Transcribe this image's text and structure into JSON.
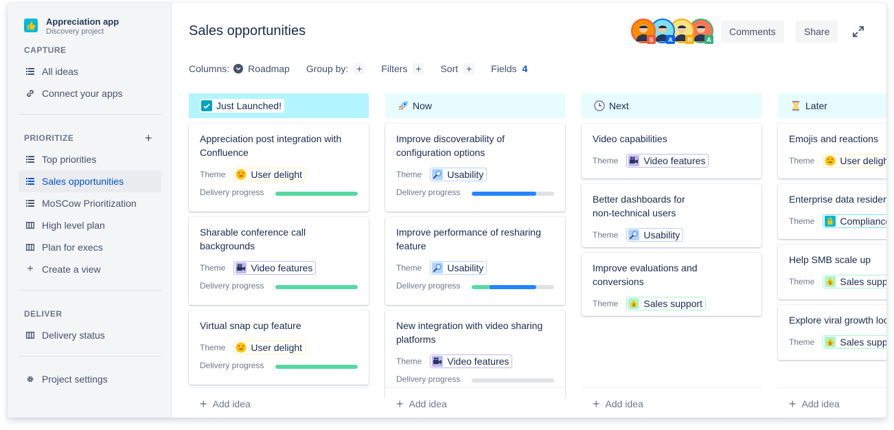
{
  "project": {
    "name": "Appreciation app",
    "type": "Discovery project"
  },
  "sidebar": {
    "capture_title": "CAPTURE",
    "capture_items": [
      {
        "label": "All ideas",
        "icon": "list-icon"
      },
      {
        "label": "Connect your apps",
        "icon": "link-icon"
      }
    ],
    "prioritize_title": "PRIORITIZE",
    "prioritize_items": [
      {
        "label": "Top priorities",
        "icon": "list-icon"
      },
      {
        "label": "Sales opportunities",
        "icon": "list-icon",
        "active": true
      },
      {
        "label": "MoSCow Prioritization",
        "icon": "list-icon"
      },
      {
        "label": "High level plan",
        "icon": "board-icon"
      },
      {
        "label": "Plan for execs",
        "icon": "board-icon"
      },
      {
        "label": "Create a view",
        "icon": "plus-icon"
      }
    ],
    "deliver_title": "DELIVER",
    "deliver_items": [
      {
        "label": "Delivery status",
        "icon": "board-icon"
      }
    ],
    "settings_label": "Project settings"
  },
  "header": {
    "title": "Sales opportunities",
    "avatars": [
      {
        "letter": "S",
        "bg": "#ff8b00",
        "badge": "#ff5630"
      },
      {
        "letter": "A",
        "bg": "#79e2f2",
        "badge": "#0065ff"
      },
      {
        "letter": "R",
        "bg": "#ffe380",
        "badge": "#ffab00"
      },
      {
        "letter": "A",
        "bg": "#ff7452",
        "badge": "#36b37e"
      }
    ],
    "comments_label": "Comments",
    "share_label": "Share"
  },
  "toolbar": {
    "columns_label": "Columns:",
    "columns_value": "Roadmap",
    "group_by_label": "Group by:",
    "filters_label": "Filters",
    "sort_label": "Sort",
    "fields_label": "Fields",
    "fields_count": "4"
  },
  "themes": {
    "user_delight": {
      "label": "User delight",
      "icon": "heart-eyes-icon",
      "border": "#fff0b3"
    },
    "usability": {
      "label": "Usability",
      "icon": "magnifier-icon",
      "border": "#b3d4ff"
    },
    "video": {
      "label": "Video features",
      "icon": "video-camera-icon",
      "border": "#c0b6f2"
    },
    "sales": {
      "label": "Sales support",
      "icon": "money-bag-icon",
      "border": "#abf5d1"
    },
    "compliance": {
      "label": "Compliance",
      "icon": "lock-icon",
      "border": "#79e2f2"
    }
  },
  "labels": {
    "theme": "Theme",
    "delivery": "Delivery progress",
    "add_idea": "Add idea"
  },
  "columns": [
    {
      "name": "Just Launched!",
      "icon": "check-icon",
      "header_bg": "#b3f5ff",
      "cards": [
        {
          "title_lines": [
            "Appreciation post integration with",
            "Confluence"
          ],
          "theme": "user_delight",
          "progress": {
            "green": 1.0,
            "blue": 0
          }
        },
        {
          "title_lines": [
            "Sharable conference call",
            "backgrounds"
          ],
          "theme": "video",
          "progress": {
            "green": 1.0,
            "blue": 0
          }
        },
        {
          "title_lines": [
            "Virtual snap cup feature"
          ],
          "theme": "user_delight",
          "progress": {
            "green": 1.0,
            "blue": 0
          }
        }
      ]
    },
    {
      "name": "Now",
      "icon": "rocket-icon",
      "header_bg": "#e6fcff",
      "cards": [
        {
          "title_lines": [
            "Improve discoverability of",
            "configuration options"
          ],
          "theme": "usability",
          "progress": {
            "green": 0,
            "blue": 0.78
          }
        },
        {
          "title_lines": [
            "Improve performance of resharing",
            "feature"
          ],
          "theme": "usability",
          "progress": {
            "green": 0.22,
            "blue": 0.56
          }
        },
        {
          "title_lines": [
            "New integration with video sharing",
            "platforms"
          ],
          "theme": "video",
          "progress": {
            "green": 0,
            "blue": 0
          }
        }
      ]
    },
    {
      "name": "Next",
      "icon": "clock-icon",
      "header_bg": "#e6fcff",
      "cards": [
        {
          "title_lines": [
            "Video capabilities"
          ],
          "theme": "video"
        },
        {
          "title_lines": [
            "Better dashboards for",
            "non-technical users"
          ],
          "theme": "usability"
        },
        {
          "title_lines": [
            "Improve evaluations and",
            "conversions"
          ],
          "theme": "sales"
        }
      ]
    },
    {
      "name": "Later",
      "icon": "hourglass-icon",
      "header_bg": "#e6fcff",
      "cards": [
        {
          "title_lines": [
            "Emojis and reactions"
          ],
          "theme": "user_delight"
        },
        {
          "title_lines": [
            "Enterprise data residency"
          ],
          "theme": "compliance"
        },
        {
          "title_lines": [
            "Help SMB scale up"
          ],
          "theme": "sales"
        },
        {
          "title_lines": [
            "Explore viral growth loops"
          ],
          "theme": "sales"
        }
      ]
    }
  ],
  "colors": {
    "green": "#57d9a3",
    "blue": "#2684ff",
    "accent": "#0052cc"
  }
}
